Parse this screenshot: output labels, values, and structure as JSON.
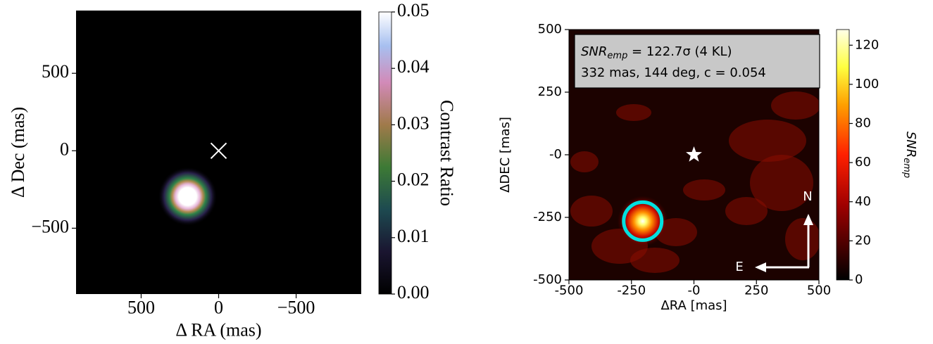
{
  "chart_data": [
    {
      "type": "image",
      "colormap": "cubehelix",
      "xlabel": "Δ RA (mas)",
      "ylabel": "Δ Dec (mas)",
      "xlim": [
        920,
        -920
      ],
      "xticks": [
        500,
        0,
        {
          "value": -500,
          "label": "−500"
        }
      ],
      "ylim": [
        -925,
        905
      ],
      "yticks": [
        500,
        0,
        {
          "value": -500,
          "label": "−500"
        }
      ],
      "clim": [
        0,
        0.05
      ],
      "cticks": [
        {
          "value": 0,
          "label": "0.00"
        },
        0.01,
        0.02,
        0.03,
        0.04,
        0.05
      ],
      "colorbar_label": "Contrast Ratio",
      "star": {
        "x": 0,
        "y": 0
      },
      "companion": {
        "x": 200,
        "y": -295
      }
    },
    {
      "type": "image",
      "colormap": "afmhot",
      "xlabel": "ΔRA [mas]",
      "ylabel": "ΔDEC [mas]",
      "xlim": [
        -500,
        500
      ],
      "xticks": [
        -500,
        -250,
        {
          "value": 0,
          "label": "-0"
        },
        250,
        500
      ],
      "ylim": [
        -500,
        500
      ],
      "yticks": [
        -500,
        -250,
        {
          "value": 0,
          "label": "-0"
        },
        250,
        500
      ],
      "clim": [
        0,
        128
      ],
      "cticks": [
        0,
        20,
        40,
        60,
        80,
        100,
        120
      ],
      "colorbar_label": {
        "text": "SNR",
        "subscript": "emp"
      },
      "annotation": {
        "symbol": "SNR",
        "subscript": "emp",
        "text": " = 122.7σ (4 KL)",
        "line2": "332 mas, 144 deg, c = 0.054"
      },
      "compass": {
        "north": "N",
        "east": "E"
      },
      "star": {
        "x": 0,
        "y": 0
      },
      "companion": {
        "x": -205,
        "y": -265
      }
    }
  ]
}
